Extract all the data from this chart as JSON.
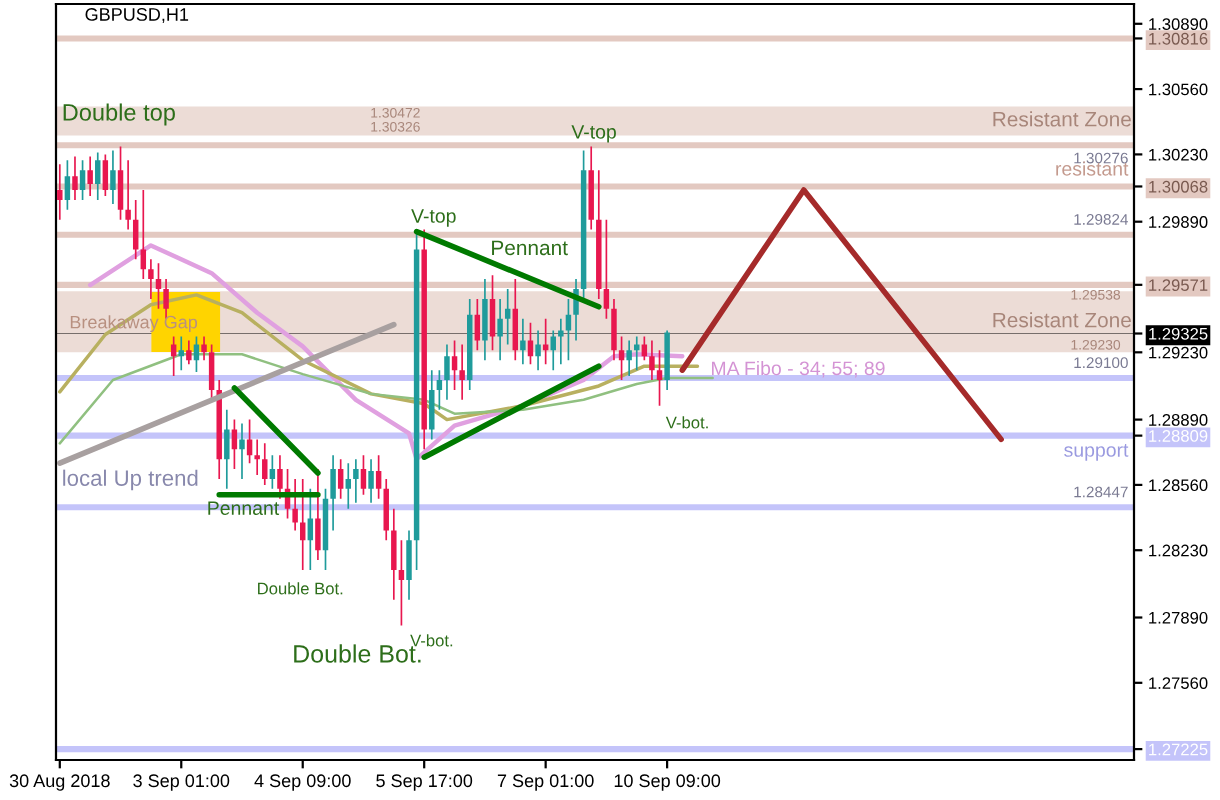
{
  "chart_data": {
    "type": "candlestick",
    "title": "GBPUSD,H1",
    "categories": [
      "30 Aug 2018",
      null,
      null,
      null,
      null,
      null,
      null,
      null,
      null,
      null,
      null,
      null,
      null,
      null,
      null,
      null,
      "3 Sep 01:00",
      null,
      null,
      null,
      null,
      null,
      null,
      null,
      null,
      null,
      null,
      null,
      null,
      null,
      null,
      null,
      "4 Sep 09:00",
      null,
      null,
      null,
      null,
      null,
      null,
      null,
      null,
      null,
      null,
      null,
      null,
      null,
      null,
      null,
      "5 Sep 17:00",
      null,
      null,
      null,
      null,
      null,
      null,
      null,
      null,
      null,
      null,
      null,
      null,
      null,
      null,
      null,
      "7 Sep 01:00",
      null,
      null,
      null,
      null,
      null,
      null,
      null,
      null,
      null,
      null,
      null,
      null,
      null,
      null,
      null,
      "10 Sep 09:00",
      null,
      null,
      null,
      null,
      null,
      null,
      null,
      null,
      null,
      null,
      null,
      null,
      null,
      null,
      null,
      null,
      null,
      null,
      null,
      null,
      null,
      null,
      null,
      null,
      null,
      null,
      null,
      null,
      null,
      null,
      null,
      null,
      null,
      null,
      null,
      null,
      null,
      null,
      null,
      null,
      null,
      null,
      null,
      null,
      null,
      null,
      null,
      null,
      null,
      null,
      null,
      null,
      null,
      null,
      null,
      null,
      null,
      null,
      null,
      null,
      null
    ],
    "ohlc": [
      [
        1.3005,
        1.3018,
        1.299,
        1.3
      ],
      [
        1.3,
        1.302,
        1.2995,
        1.3012
      ],
      [
        1.3012,
        1.3022,
        1.3,
        1.3005
      ],
      [
        1.3005,
        1.302,
        1.3,
        1.3015
      ],
      [
        1.3015,
        1.3022,
        1.3002,
        1.3008
      ],
      [
        1.3008,
        1.3024,
        1.3,
        1.302
      ],
      [
        1.302,
        1.3023,
        1.3002,
        1.3005
      ],
      [
        1.3005,
        1.3025,
        1.2998,
        1.3015
      ],
      [
        1.3015,
        1.3027,
        1.299,
        1.2995
      ],
      [
        1.2995,
        1.302,
        1.2985,
        1.299
      ],
      [
        1.299,
        1.3,
        1.297,
        1.2975
      ],
      [
        1.2975,
        1.3005,
        1.296,
        1.2965
      ],
      [
        1.2965,
        1.297,
        1.295,
        1.296
      ],
      [
        1.296,
        1.2968,
        1.2945,
        1.2955
      ],
      [
        1.2955,
        1.296,
        1.294,
        1.2945
      ],
      [
        1.2927,
        1.2931,
        1.2911,
        1.2921
      ],
      [
        1.2921,
        1.2931,
        1.2914,
        1.2924
      ],
      [
        1.2924,
        1.2929,
        1.2917,
        1.2919
      ],
      [
        1.2919,
        1.2931,
        1.2913,
        1.2927
      ],
      [
        1.2927,
        1.2931,
        1.2919,
        1.2923
      ],
      [
        1.2923,
        1.2927,
        1.2899,
        1.2904
      ],
      [
        1.2904,
        1.2909,
        1.2859,
        1.2869
      ],
      [
        1.2869,
        1.2894,
        1.2854,
        1.2884
      ],
      [
        1.2884,
        1.2889,
        1.2864,
        1.2874
      ],
      [
        1.2874,
        1.2887,
        1.2859,
        1.2879
      ],
      [
        1.2879,
        1.2889,
        1.2867,
        1.2871
      ],
      [
        1.2871,
        1.2879,
        1.2861,
        1.2869
      ],
      [
        1.2869,
        1.2877,
        1.2856,
        1.2859
      ],
      [
        1.2859,
        1.2871,
        1.2854,
        1.2864
      ],
      [
        1.2864,
        1.2871,
        1.2849,
        1.2854
      ],
      [
        1.2854,
        1.2864,
        1.2839,
        1.2844
      ],
      [
        1.2844,
        1.2859,
        1.2833,
        1.2837
      ],
      [
        1.2837,
        1.2859,
        1.2813,
        1.2828
      ],
      [
        1.2828,
        1.2854,
        1.2813,
        1.2839
      ],
      [
        1.2839,
        1.2864,
        1.2818,
        1.2823
      ],
      [
        1.2823,
        1.2854,
        1.2813,
        1.2849
      ],
      [
        1.2849,
        1.2871,
        1.2833,
        1.2864
      ],
      [
        1.2864,
        1.2869,
        1.2849,
        1.2854
      ],
      [
        1.2854,
        1.2867,
        1.2844,
        1.2859
      ],
      [
        1.2859,
        1.2869,
        1.2847,
        1.2864
      ],
      [
        1.2864,
        1.2871,
        1.2851,
        1.2854
      ],
      [
        1.2854,
        1.2869,
        1.2847,
        1.2863
      ],
      [
        1.2863,
        1.2871,
        1.2849,
        1.2854
      ],
      [
        1.2854,
        1.2859,
        1.2828,
        1.2833
      ],
      [
        1.2833,
        1.2844,
        1.2798,
        1.2813
      ],
      [
        1.2813,
        1.2828,
        1.2785,
        1.2808
      ],
      [
        1.2808,
        1.2833,
        1.2798,
        1.2828
      ],
      [
        1.2828,
        1.2985,
        1.2813,
        1.2975
      ],
      [
        1.2975,
        1.2985,
        1.2874,
        1.2884
      ],
      [
        1.2884,
        1.2914,
        1.2879,
        1.2904
      ],
      [
        1.2904,
        1.2914,
        1.2894,
        1.2909
      ],
      [
        1.2909,
        1.2927,
        1.2899,
        1.2921
      ],
      [
        1.2921,
        1.2929,
        1.2904,
        1.2914
      ],
      [
        1.2914,
        1.2927,
        1.2899,
        1.2909
      ],
      [
        1.2909,
        1.295,
        1.2904,
        1.2942
      ],
      [
        1.2942,
        1.295,
        1.2924,
        1.2929
      ],
      [
        1.2929,
        1.296,
        1.2919,
        1.295
      ],
      [
        1.295,
        1.2962,
        1.2924,
        1.2931
      ],
      [
        1.2931,
        1.295,
        1.2919,
        1.294
      ],
      [
        1.294,
        1.2955,
        1.2927,
        1.2945
      ],
      [
        1.2945,
        1.296,
        1.2919,
        1.2924
      ],
      [
        1.2924,
        1.294,
        1.2917,
        1.2929
      ],
      [
        1.2929,
        1.2938,
        1.2917,
        1.2921
      ],
      [
        1.2921,
        1.2934,
        1.2914,
        1.2927
      ],
      [
        1.2927,
        1.294,
        1.2917,
        1.2924
      ],
      [
        1.2924,
        1.2934,
        1.2914,
        1.2931
      ],
      [
        1.2931,
        1.294,
        1.2917,
        1.2934
      ],
      [
        1.2934,
        1.295,
        1.2919,
        1.2942
      ],
      [
        1.2942,
        1.296,
        1.2929,
        1.2955
      ],
      [
        1.2955,
        1.3025,
        1.295,
        1.3015
      ],
      [
        1.3015,
        1.3027,
        1.2985,
        1.299
      ],
      [
        1.299,
        1.3015,
        1.295,
        1.2955
      ],
      [
        1.2955,
        1.299,
        1.294,
        1.2945
      ],
      [
        1.2945,
        1.295,
        1.2919,
        1.2924
      ],
      [
        1.2924,
        1.2931,
        1.2909,
        1.2919
      ],
      [
        1.2919,
        1.2929,
        1.2911,
        1.2924
      ],
      [
        1.2924,
        1.2931,
        1.2914,
        1.2927
      ],
      [
        1.2927,
        1.2931,
        1.2919,
        1.2921
      ],
      [
        1.2921,
        1.2929,
        1.2909,
        1.2914
      ],
      [
        1.2914,
        1.2924,
        1.2896,
        1.2909
      ],
      [
        1.2909,
        1.2934,
        1.2904,
        1.2933
      ],
      null,
      null,
      null,
      null,
      null,
      null,
      null,
      null,
      null,
      null,
      null,
      null,
      null,
      null,
      null,
      null,
      null,
      null,
      null,
      null,
      null,
      null,
      null,
      null,
      null,
      null,
      null,
      null,
      null,
      null,
      null,
      null,
      null,
      null,
      null,
      null,
      null,
      null,
      null,
      null,
      null,
      null,
      null,
      null,
      null,
      null,
      null,
      null,
      null,
      null,
      null,
      null,
      null,
      null,
      null,
      null,
      null,
      null,
      null,
      null,
      null
    ],
    "colors": [
      "#e8174f",
      "#1f9b9b",
      "#e8174f",
      "#1f9b9b",
      "#e8174f",
      "#1f9b9b",
      "#e8174f",
      "#1f9b9b",
      "#e8174f",
      "#e8174f",
      "#e8174f",
      "#e8174f",
      "#e8174f",
      "#e8174f",
      "#e8174f",
      "#e8174f",
      "#1f9b9b",
      "#e8174f",
      "#1f9b9b",
      "#e8174f",
      "#e8174f",
      "#e8174f",
      "#1f9b9b",
      "#e8174f",
      "#1f9b9b",
      "#e8174f",
      "#e8174f",
      "#e8174f",
      "#1f9b9b",
      "#e8174f",
      "#e8174f",
      "#e8174f",
      "#e8174f",
      "#1f9b9b",
      "#e8174f",
      "#1f9b9b",
      "#1f9b9b",
      "#e8174f",
      "#1f9b9b",
      "#1f9b9b",
      "#e8174f",
      "#1f9b9b",
      "#e8174f",
      "#e8174f",
      "#e8174f",
      "#e8174f",
      "#1f9b9b",
      "#1f9b9b",
      "#e8174f",
      "#1f9b9b",
      "#1f9b9b",
      "#1f9b9b",
      "#e8174f",
      "#e8174f",
      "#1f9b9b",
      "#e8174f",
      "#1f9b9b",
      "#e8174f",
      "#1f9b9b",
      "#1f9b9b",
      "#e8174f",
      "#1f9b9b",
      "#e8174f",
      "#1f9b9b",
      "#e8174f",
      "#1f9b9b",
      "#1f9b9b",
      "#1f9b9b",
      "#1f9b9b",
      "#1f9b9b",
      "#e8174f",
      "#e8174f",
      "#e8174f",
      "#e8174f",
      "#e8174f",
      "#1f9b9b",
      "#1f9b9b",
      "#e8174f",
      "#e8174f",
      "#e8174f",
      "#1f9b9b",
      null,
      null,
      null,
      null,
      null,
      null,
      null,
      null,
      null,
      null,
      null,
      null,
      null,
      null,
      null,
      null,
      null,
      null,
      null,
      null,
      null,
      null,
      null,
      null,
      null,
      null,
      null,
      null,
      null,
      null,
      null,
      null,
      null,
      null,
      null,
      null,
      null,
      null,
      null,
      null,
      null,
      null,
      null,
      null,
      null,
      null,
      null,
      null,
      null,
      null,
      null,
      null,
      null,
      null,
      null,
      null,
      null,
      null,
      null,
      null,
      null
    ],
    "series": [
      {
        "type": "line",
        "color": "#e0a0e0",
        "values": [
          null,
          null,
          null,
          null,
          1.2957,
          null,
          null,
          null,
          null,
          null,
          null,
          null,
          1.2977,
          null,
          null,
          null,
          null,
          null,
          null,
          null,
          1.2963,
          null,
          null,
          null,
          null,
          null,
          1.2943,
          null,
          null,
          null,
          null,
          null,
          1.2926,
          null,
          null,
          null,
          null,
          null,
          null,
          1.2899,
          null,
          null,
          null,
          null,
          null,
          null,
          1.2882,
          1.2869,
          null,
          null,
          null,
          null,
          1.2886,
          null,
          null,
          null,
          null,
          null,
          null,
          null,
          null,
          1.2896,
          null,
          null,
          null,
          null,
          null,
          null,
          null,
          1.2909,
          null,
          null,
          null,
          1.2921,
          null,
          null,
          1.2922,
          null,
          null,
          null,
          null,
          null,
          1.2921,
          null,
          null,
          null,
          null,
          null,
          null,
          null,
          null,
          null,
          null,
          null,
          null,
          null,
          null,
          null,
          null,
          null,
          null,
          null,
          null,
          null,
          null,
          null,
          null,
          null,
          null,
          null,
          null,
          null,
          null,
          null,
          null,
          null,
          null,
          null,
          null,
          null,
          null,
          null,
          null,
          null,
          null,
          null,
          null,
          null,
          null,
          null,
          null,
          null,
          null,
          null,
          null,
          null,
          null,
          null,
          null,
          null,
          null,
          null
        ]
      },
      {
        "type": "line",
        "color": "#b8b060",
        "values": [
          1.2903,
          null,
          null,
          null,
          null,
          null,
          1.2932,
          null,
          null,
          null,
          null,
          null,
          1.2947,
          null,
          null,
          null,
          null,
          null,
          1.2952,
          null,
          null,
          null,
          null,
          null,
          1.2943,
          null,
          null,
          null,
          null,
          null,
          null,
          null,
          1.2919,
          null,
          null,
          null,
          null,
          null,
          null,
          null,
          null,
          1.2902,
          null,
          null,
          null,
          null,
          null,
          null,
          1.2897,
          null,
          null,
          1.2889,
          null,
          null,
          null,
          null,
          null,
          null,
          null,
          null,
          null,
          1.2896,
          null,
          null,
          null,
          null,
          null,
          null,
          null,
          null,
          null,
          1.2906,
          null,
          null,
          null,
          null,
          null,
          1.2916,
          null,
          null,
          null,
          null,
          null,
          null,
          1.2916,
          null,
          null,
          null,
          null,
          null,
          null,
          null,
          null,
          null,
          null,
          null,
          null,
          null,
          null,
          null,
          null,
          null,
          null,
          null,
          null,
          null,
          null,
          null,
          null,
          null,
          null,
          null,
          null,
          null,
          null,
          null,
          null,
          null,
          null,
          null,
          null,
          null,
          null,
          null,
          null,
          null,
          null,
          null,
          null,
          null,
          null,
          null,
          null,
          null,
          null,
          null,
          null,
          null,
          null,
          null,
          null,
          null
        ]
      },
      {
        "type": "line",
        "color": "#90c080",
        "values": [
          1.2877,
          null,
          null,
          null,
          null,
          null,
          null,
          1.2909,
          null,
          null,
          null,
          null,
          null,
          null,
          null,
          null,
          1.2922,
          null,
          null,
          null,
          null,
          null,
          null,
          null,
          1.2922,
          null,
          null,
          null,
          null,
          null,
          null,
          null,
          1.2912,
          null,
          null,
          null,
          null,
          null,
          null,
          null,
          null,
          1.2902,
          null,
          null,
          null,
          null,
          null,
          null,
          1.2899,
          null,
          null,
          null,
          1.2892,
          null,
          null,
          null,
          null,
          null,
          null,
          null,
          null,
          1.2894,
          null,
          null,
          null,
          null,
          null,
          null,
          null,
          1.2899,
          null,
          null,
          null,
          null,
          null,
          null,
          1.2907,
          null,
          null,
          null,
          1.291,
          null,
          null,
          null,
          null,
          null,
          1.291,
          null,
          null,
          null,
          null,
          null,
          null,
          null,
          null,
          null,
          null,
          null,
          null,
          null,
          null,
          null,
          null,
          null,
          null,
          null,
          null,
          null,
          null,
          null,
          null,
          null,
          null,
          null,
          null,
          null,
          null,
          null,
          null,
          null,
          null,
          null,
          null,
          null,
          null,
          null,
          null,
          null,
          null,
          null,
          null,
          null,
          null,
          null,
          null,
          null,
          null,
          null,
          null,
          null,
          null,
          null
        ]
      },
      {
        "type": "line",
        "color": "#a8a0a0",
        "values": [
          1.2867,
          null,
          null,
          null,
          null,
          null,
          null,
          null,
          null,
          null,
          null,
          null,
          null,
          null,
          null,
          null,
          null,
          null,
          null,
          null,
          null,
          null,
          null,
          null,
          null,
          null,
          null,
          null,
          null,
          null,
          null,
          null,
          null,
          null,
          null,
          null,
          null,
          null,
          null,
          null,
          null,
          null,
          null,
          null,
          1.2937,
          null,
          null,
          null,
          null,
          null,
          null,
          null,
          null,
          null,
          null,
          null,
          null,
          null,
          null,
          null,
          null,
          null,
          null,
          null,
          null,
          null,
          null,
          null,
          null,
          null,
          null,
          null,
          null,
          null,
          null,
          null,
          null,
          null,
          null,
          null,
          null,
          null,
          null,
          null,
          null,
          null,
          null,
          null,
          null,
          null,
          null,
          null,
          null,
          null,
          null,
          null,
          null,
          null,
          null,
          null,
          null,
          null,
          null,
          null,
          null,
          null,
          null,
          null,
          null,
          null,
          null,
          null,
          null,
          null,
          null,
          null,
          null,
          null,
          null,
          null,
          null,
          null,
          null,
          null,
          null,
          null,
          null,
          null,
          null,
          null,
          null,
          null,
          null,
          null,
          null,
          null,
          null,
          null,
          null,
          null,
          null,
          null
        ]
      },
      {
        "type": "line",
        "color": "#007a00",
        "values": [
          null,
          null,
          null,
          null,
          null,
          null,
          null,
          null,
          null,
          null,
          null,
          null,
          null,
          null,
          null,
          null,
          null,
          null,
          null,
          null,
          null,
          null,
          null,
          1.2905,
          null,
          null,
          null,
          null,
          null,
          null,
          null,
          null,
          null,
          null,
          1.2862,
          null,
          null,
          null,
          null,
          null,
          null,
          null,
          null,
          null,
          null,
          null,
          null,
          null,
          null,
          null,
          null,
          null,
          null,
          null,
          null,
          null,
          null,
          null,
          null,
          null,
          null,
          null,
          null,
          null,
          null,
          null,
          null,
          null,
          null,
          null,
          null,
          null,
          null,
          null,
          null,
          null,
          null,
          null,
          null,
          null,
          null,
          null,
          null,
          null,
          null,
          null,
          null,
          null,
          null,
          null,
          null,
          null,
          null,
          null,
          null,
          null,
          null,
          null,
          null,
          null,
          null,
          null,
          null,
          null,
          null,
          null,
          null,
          null,
          null,
          null,
          null,
          null,
          null,
          null,
          null,
          null,
          null,
          null,
          null,
          null,
          null,
          null,
          null,
          null,
          null,
          null,
          null,
          null,
          null,
          null,
          null,
          null,
          null,
          null,
          null,
          null,
          null,
          null,
          null,
          null,
          null,
          null
        ]
      },
      {
        "type": "line",
        "color": "#007a00",
        "values": [
          null,
          null,
          null,
          null,
          null,
          null,
          null,
          null,
          null,
          null,
          null,
          null,
          null,
          null,
          null,
          null,
          null,
          null,
          null,
          null,
          null,
          1.2851,
          null,
          null,
          null,
          null,
          null,
          null,
          null,
          null,
          null,
          null,
          null,
          null,
          1.2851,
          null,
          null,
          null,
          null,
          null,
          null,
          null,
          null,
          null,
          null,
          null,
          null,
          null,
          null,
          null,
          null,
          null,
          null,
          null,
          null,
          null,
          null,
          null,
          null,
          null,
          null,
          null,
          null,
          null,
          null,
          null,
          null,
          null,
          null,
          null,
          null,
          null,
          null,
          null,
          null,
          null,
          null,
          null,
          null,
          null,
          null,
          null,
          null,
          null,
          null,
          null,
          null,
          null,
          null,
          null,
          null,
          null,
          null,
          null,
          null,
          null,
          null,
          null,
          null,
          null,
          null,
          null,
          null,
          null,
          null,
          null,
          null,
          null,
          null,
          null,
          null,
          null,
          null,
          null,
          null,
          null,
          null,
          null,
          null,
          null,
          null,
          null,
          null,
          null,
          null,
          null,
          null,
          null,
          null,
          null,
          null,
          null,
          null,
          null,
          null,
          null,
          null,
          null,
          null,
          null,
          null,
          null
        ]
      },
      {
        "type": "line",
        "color": "#007a00",
        "values": [
          null,
          null,
          null,
          null,
          null,
          null,
          null,
          null,
          null,
          null,
          null,
          null,
          null,
          null,
          null,
          null,
          null,
          null,
          null,
          null,
          null,
          null,
          null,
          null,
          null,
          null,
          null,
          null,
          null,
          null,
          null,
          null,
          null,
          null,
          null,
          null,
          null,
          null,
          null,
          null,
          null,
          null,
          null,
          null,
          null,
          null,
          null,
          1.2984,
          null,
          null,
          null,
          null,
          null,
          null,
          null,
          null,
          null,
          null,
          null,
          null,
          null,
          null,
          null,
          null,
          null,
          null,
          null,
          null,
          null,
          null,
          null,
          1.2946,
          null,
          null,
          null,
          null,
          null,
          null,
          null,
          null,
          null,
          null,
          null,
          null,
          null,
          null,
          null,
          null,
          null,
          null,
          null,
          null,
          null,
          null,
          null,
          null,
          null,
          null,
          null,
          null,
          null,
          null,
          null,
          null,
          null,
          null,
          null,
          null,
          null,
          null,
          null,
          null,
          null,
          null,
          null,
          null,
          null,
          null,
          null,
          null,
          null,
          null,
          null,
          null,
          null,
          null,
          null,
          null,
          null,
          null,
          null,
          null,
          null,
          null,
          null,
          null,
          null,
          null,
          null,
          null,
          null,
          null
        ]
      },
      {
        "type": "line",
        "color": "#007a00",
        "values": [
          null,
          null,
          null,
          null,
          null,
          null,
          null,
          null,
          null,
          null,
          null,
          null,
          null,
          null,
          null,
          null,
          null,
          null,
          null,
          null,
          null,
          null,
          null,
          null,
          null,
          null,
          null,
          null,
          null,
          null,
          null,
          null,
          null,
          null,
          null,
          null,
          null,
          null,
          null,
          null,
          null,
          null,
          null,
          null,
          null,
          null,
          null,
          null,
          1.287,
          null,
          null,
          null,
          null,
          null,
          null,
          null,
          null,
          null,
          null,
          null,
          null,
          null,
          null,
          null,
          null,
          null,
          null,
          null,
          null,
          null,
          null,
          1.2916,
          null,
          null,
          null,
          null,
          null,
          null,
          null,
          null,
          null,
          null,
          null,
          null,
          null,
          null,
          null,
          null,
          null,
          null,
          null,
          null,
          null,
          null,
          null,
          null,
          null,
          null,
          null,
          null,
          null,
          null,
          null,
          null,
          null,
          null,
          null,
          null,
          null,
          null,
          null,
          null,
          null,
          null,
          null,
          null,
          null,
          null,
          null,
          null,
          null,
          null,
          null,
          null,
          null,
          null,
          null,
          null,
          null,
          null,
          null,
          null,
          null,
          null,
          null,
          null,
          null,
          null,
          null,
          null,
          null,
          null
        ]
      },
      {
        "type": "line",
        "color": "#a52a2a",
        "values": [
          null,
          null,
          null,
          null,
          null,
          null,
          null,
          null,
          null,
          null,
          null,
          null,
          null,
          null,
          null,
          null,
          null,
          null,
          null,
          null,
          null,
          null,
          null,
          null,
          null,
          null,
          null,
          null,
          null,
          null,
          null,
          null,
          null,
          null,
          null,
          null,
          null,
          null,
          null,
          null,
          null,
          null,
          null,
          null,
          null,
          null,
          null,
          null,
          null,
          null,
          null,
          null,
          null,
          null,
          null,
          null,
          null,
          null,
          null,
          null,
          null,
          null,
          null,
          null,
          null,
          null,
          null,
          null,
          null,
          null,
          null,
          null,
          null,
          null,
          null,
          null,
          null,
          null,
          null,
          null,
          null,
          null,
          1.2914,
          null,
          null,
          null,
          null,
          null,
          null,
          null,
          null,
          null,
          null,
          null,
          null,
          null,
          null,
          null,
          1.3005,
          null,
          null,
          null,
          null,
          null,
          null,
          null,
          null,
          null,
          null,
          null,
          null,
          null,
          null,
          null,
          null,
          null,
          null,
          null,
          null,
          null,
          null,
          null,
          null,
          null,
          1.2879,
          null,
          null,
          null,
          null,
          null,
          null,
          null,
          null,
          null,
          null,
          null,
          null,
          null,
          null,
          null,
          null,
          null
        ]
      }
    ],
    "bands": [
      {
        "axis": "y",
        "from": 1.30326,
        "to": 1.30472,
        "label": "Resistant Zone",
        "color": "#ecdcd6"
      },
      {
        "axis": "y",
        "from": 1.2923,
        "to": 1.29538,
        "label": "Resistant Zone",
        "color": "#ecdcd6"
      }
    ],
    "ref_lines": [
      {
        "axis": "y",
        "value": 1.30816,
        "color": "#e3c9c1"
      },
      {
        "axis": "y",
        "value": 1.30276,
        "label": "1.30276",
        "color": "#e3c9c1"
      },
      {
        "axis": "y",
        "value": 1.30068,
        "label": "resistant",
        "color": "#e3c9c1"
      },
      {
        "axis": "y",
        "value": 1.29824,
        "label": "1.29824",
        "color": "#e3c9c1"
      },
      {
        "axis": "y",
        "value": 1.29571,
        "color": "#e3c9c1"
      },
      {
        "axis": "y",
        "value": 1.29325,
        "color": "#000000"
      },
      {
        "axis": "y",
        "value": 1.291,
        "label": "1.29100",
        "color": "#c4c4fa"
      },
      {
        "axis": "y",
        "value": 1.28809,
        "label": "support",
        "color": "#c4c4fa"
      },
      {
        "axis": "y",
        "value": 1.28447,
        "label": "1.28447",
        "color": "#c4c4fa"
      },
      {
        "axis": "y",
        "value": 1.27225,
        "color": "#c4c4fa"
      }
    ],
    "annotations": [
      {
        "text": "Double top",
        "y": 1.3025
      },
      {
        "text": "Breakaway Gap",
        "y": 1.294
      },
      "local Up trend",
      {
        "text": "Pennant",
        "y": 1.2851
      },
      {
        "text": "Double Bot.",
        "y": 1.2813
      },
      "Double Bot.",
      "V-bot.",
      {
        "text": "V-top",
        "y": 1.2985
      },
      {
        "text": "Pennant",
        "y": 1.2984
      },
      {
        "text": "V-top",
        "y": 1.3027
      },
      "V-bot.",
      "MA Fibo - 34; 55; 89",
      "1.30472",
      "1.30326",
      "1.29538",
      "1.29230"
    ],
    "ylim": [
      1.2717,
      1.3099
    ],
    "yticks": [
      {
        "value": 1.3089,
        "label": "1.30890"
      },
      {
        "value": 1.3056,
        "label": "1.30560"
      },
      {
        "value": 1.3023,
        "label": "1.30230"
      },
      {
        "value": 1.2989,
        "label": "1.29890"
      },
      {
        "value": 1.2923,
        "label": "1.29230"
      },
      {
        "value": 1.2889,
        "label": "1.28890"
      },
      {
        "value": 1.2856,
        "label": "1.28560"
      },
      {
        "value": 1.2823,
        "label": "1.28230"
      },
      {
        "value": 1.2789,
        "label": "1.27890"
      },
      {
        "value": 1.2756,
        "label": "1.27560"
      },
      {
        "value": 1.30816,
        "label": "1.30816"
      },
      {
        "value": 1.30068,
        "label": "1.30068"
      },
      {
        "value": 1.29571,
        "label": "1.29571"
      },
      {
        "value": 1.29325,
        "label": "1.29325"
      },
      {
        "value": 1.28809,
        "label": "1.28809"
      },
      {
        "value": 1.27225,
        "label": "1.27225"
      }
    ]
  }
}
